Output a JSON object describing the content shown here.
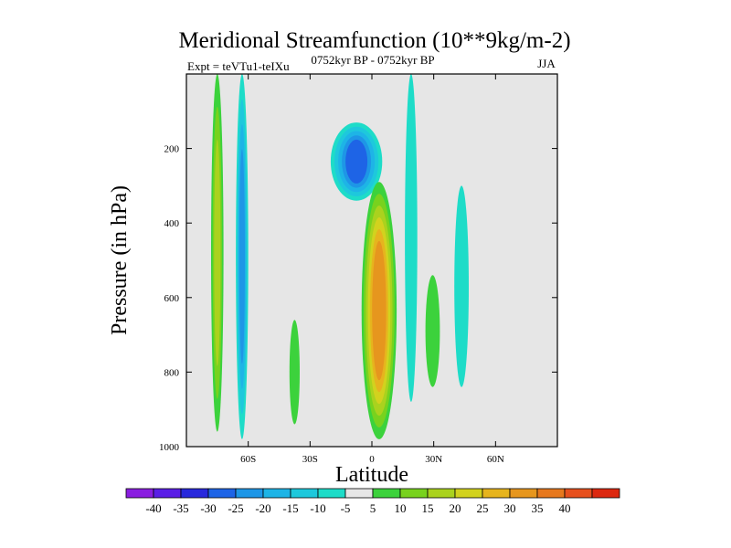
{
  "chart_data": {
    "type": "heatmap",
    "title": "Meridional Streamfunction (10**9kg/m-2)",
    "subtitle_left": "Expt = teVTu1-teIXu",
    "subtitle_center": "0752kyr BP - 0752kyr BP",
    "subtitle_right": "JJA",
    "xlabel": "Latitude",
    "ylabel": "Pressure (in hPa)",
    "xlim": [
      -90,
      90
    ],
    "ylim": [
      1000,
      0
    ],
    "x_ticks": [
      {
        "value": -60,
        "label": "60S"
      },
      {
        "value": -30,
        "label": "30S"
      },
      {
        "value": 0,
        "label": "0"
      },
      {
        "value": 30,
        "label": "30N"
      },
      {
        "value": 60,
        "label": "60N"
      }
    ],
    "y_ticks": [
      {
        "value": 200,
        "label": "200"
      },
      {
        "value": 400,
        "label": "400"
      },
      {
        "value": 600,
        "label": "600"
      },
      {
        "value": 800,
        "label": "800"
      },
      {
        "value": 1000,
        "label": "1000"
      }
    ],
    "background_color": "#e6e6e6",
    "colorbar": {
      "colors": [
        "#8a1ee0",
        "#5a1ee6",
        "#2828dc",
        "#1e64e6",
        "#1e96e6",
        "#1eb4e6",
        "#1ec8dc",
        "#1edcc8",
        "#e6e6e6",
        "#3cd23c",
        "#78d21e",
        "#aad21e",
        "#d2d21e",
        "#e6b41e",
        "#e6961e",
        "#e6781e",
        "#e6501e",
        "#dc2810"
      ],
      "labels": [
        "-40",
        "-35",
        "-30",
        "-25",
        "-20",
        "-15",
        "-10",
        "-5",
        "5",
        "10",
        "15",
        "20",
        "25",
        "30",
        "35",
        "40"
      ]
    },
    "features": [
      {
        "name": "band-75S",
        "lat": [
          -78,
          -72
        ],
        "p": [
          0,
          960
        ],
        "levels": [
          5,
          10,
          15
        ]
      },
      {
        "name": "band-65S",
        "lat": [
          -66,
          -60
        ],
        "p": [
          0,
          980
        ],
        "levels": [
          -5,
          -10,
          -15,
          -20
        ]
      },
      {
        "name": "blob-38S",
        "lat": [
          -40,
          -35
        ],
        "p": [
          660,
          940
        ],
        "levels": [
          5
        ]
      },
      {
        "name": "cell-upper-south",
        "lat": [
          -20,
          5
        ],
        "p": [
          130,
          340
        ],
        "levels": [
          -5,
          -10,
          -15,
          -20,
          -25
        ]
      },
      {
        "name": "cell-tropical-north",
        "lat": [
          -5,
          12
        ],
        "p": [
          290,
          980
        ],
        "levels": [
          5,
          10,
          15,
          20,
          25,
          30
        ]
      },
      {
        "name": "band-20N",
        "lat": [
          16,
          22
        ],
        "p": [
          0,
          880
        ],
        "levels": [
          -5
        ]
      },
      {
        "name": "blob-30N",
        "lat": [
          26,
          33
        ],
        "p": [
          540,
          840
        ],
        "levels": [
          5
        ]
      },
      {
        "name": "band-45N",
        "lat": [
          40,
          47
        ],
        "p": [
          300,
          840
        ],
        "levels": [
          -5
        ]
      }
    ]
  }
}
